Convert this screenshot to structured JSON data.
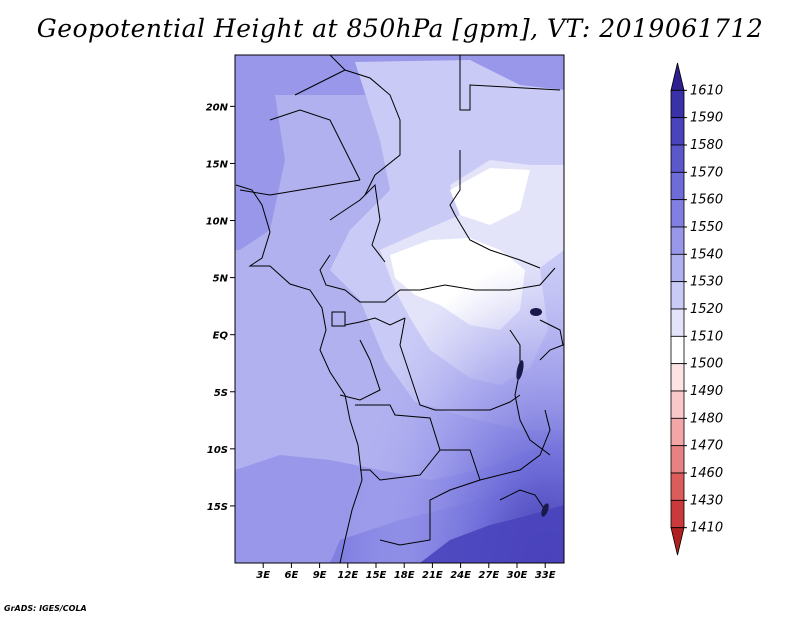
{
  "title": "Geopotential Height at 850hPa [gpm], VT: 2019061712",
  "credit": "GrADS: IGES/COLA",
  "map": {
    "variable": "Geopotential Height",
    "level": "850hPa",
    "units": "gpm",
    "valid_time": "2019061712",
    "lon_range": [
      0,
      35
    ],
    "lat_range": [
      -20,
      24.5
    ],
    "x_ticks": [
      "3E",
      "6E",
      "9E",
      "12E",
      "15E",
      "18E",
      "21E",
      "24E",
      "27E",
      "30E",
      "33E"
    ],
    "x_tick_values": [
      3,
      6,
      9,
      12,
      15,
      18,
      21,
      24,
      27,
      30,
      33
    ],
    "y_ticks": [
      "20N",
      "15N",
      "10N",
      "5N",
      "EQ",
      "5S",
      "10S",
      "15S"
    ],
    "y_tick_values": [
      20,
      15,
      10,
      5,
      0,
      -5,
      -10,
      -15
    ]
  },
  "colorbar": {
    "labels": [
      "1610",
      "1590",
      "1580",
      "1570",
      "1560",
      "1550",
      "1540",
      "1530",
      "1520",
      "1510",
      "1500",
      "1490",
      "1480",
      "1470",
      "1460",
      "1430",
      "1410"
    ],
    "colors": [
      "#2d1f8f",
      "#3a30a8",
      "#4a44bc",
      "#5b58cb",
      "#6d6cd8",
      "#8180e2",
      "#9897ea",
      "#b1b1f0",
      "#cacaf6",
      "#e3e3fa",
      "#ffffff",
      "#fde4e4",
      "#f9c8c8",
      "#f2a6a6",
      "#e88282",
      "#dc5c5c",
      "#cb3a3a",
      "#b02020"
    ]
  }
}
